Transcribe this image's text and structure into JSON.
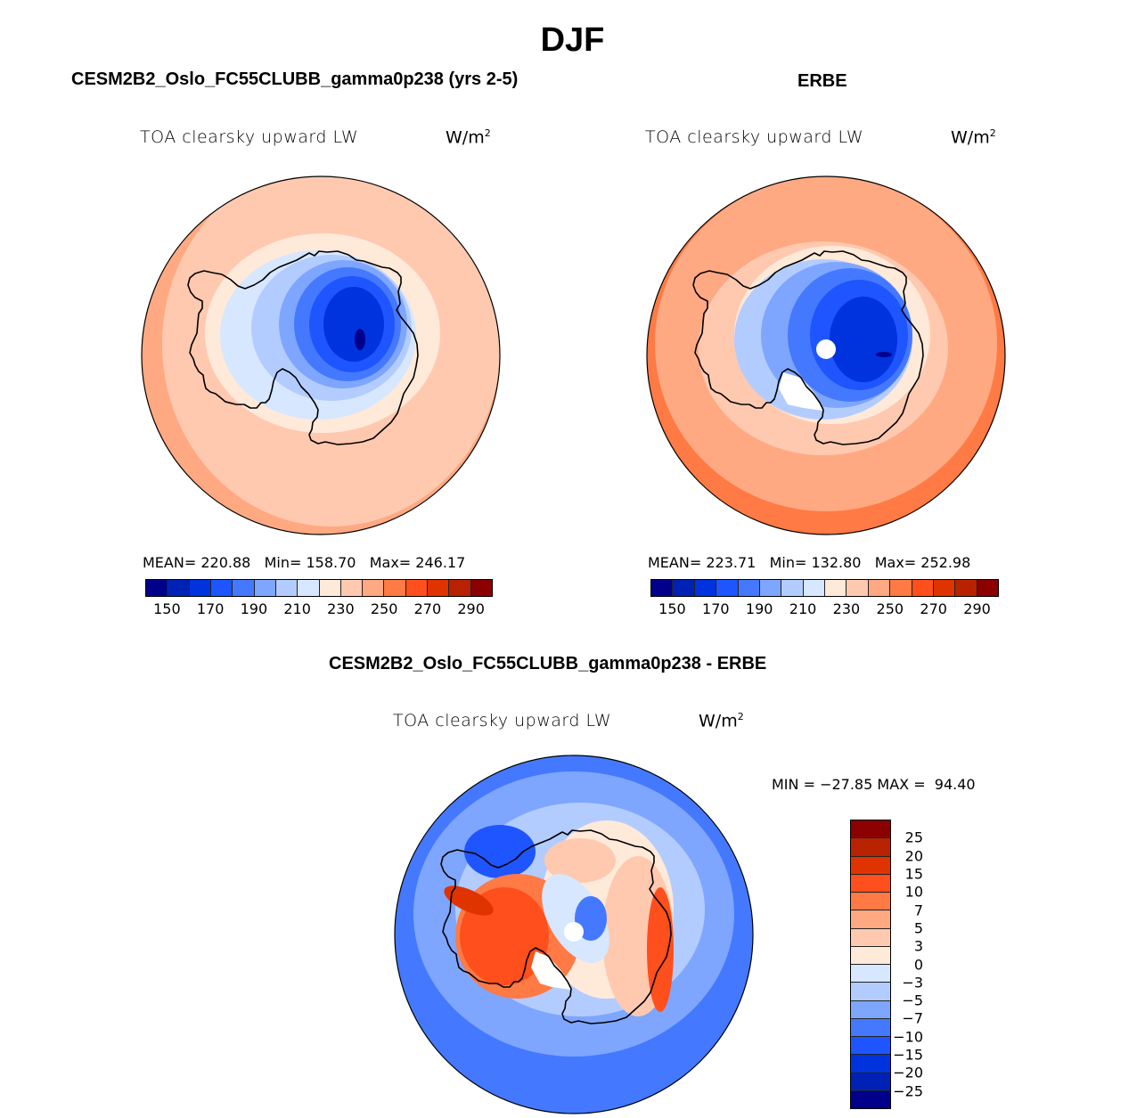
{
  "figure": {
    "title": "DJF"
  },
  "chart_data": [
    {
      "type": "heatmap",
      "projection": "south-polar-stereographic",
      "title": "CESM2B2_Oslo_FC55CLUBB_gamma0p238 (yrs 2-5)",
      "variable": "TOA clearsky upward LW",
      "units": "W/m",
      "units_exp": "2",
      "stats": {
        "mean_label": "MEAN=",
        "mean": "220.88",
        "min_label": "Min=",
        "min": "158.70",
        "max_label": "Max=",
        "max": "246.17"
      },
      "colorbar": {
        "levels": [
          150,
          160,
          170,
          180,
          190,
          200,
          210,
          220,
          230,
          240,
          250,
          260,
          270,
          280,
          290
        ],
        "tick_labels": [
          "150",
          "170",
          "190",
          "210",
          "230",
          "250",
          "270",
          "290"
        ],
        "colors": [
          "#00008b",
          "#0022b4",
          "#0033dd",
          "#1e55ff",
          "#4479ff",
          "#7ea6ff",
          "#b3ccff",
          "#d6e7ff",
          "#ffe9d9",
          "#ffc9b0",
          "#ffa983",
          "#ff7a44",
          "#ff4f1c",
          "#e03400",
          "#b82200",
          "#8b0000"
        ]
      },
      "description": "Antarctic interior low (~150-200), coastal ~220-230, Southern Ocean ~240-250"
    },
    {
      "type": "heatmap",
      "projection": "south-polar-stereographic",
      "title": "ERBE",
      "variable": "TOA clearsky upward LW",
      "units": "W/m",
      "units_exp": "2",
      "stats": {
        "mean_label": "MEAN=",
        "mean": "223.71",
        "min_label": "Min=",
        "min": "132.80",
        "max_label": "Max=",
        "max": "252.98"
      },
      "colorbar": {
        "levels": [
          150,
          160,
          170,
          180,
          190,
          200,
          210,
          220,
          230,
          240,
          250,
          260,
          270,
          280,
          290
        ],
        "tick_labels": [
          "150",
          "170",
          "190",
          "210",
          "230",
          "250",
          "270",
          "290"
        ],
        "colors": [
          "#00008b",
          "#0022b4",
          "#0033dd",
          "#1e55ff",
          "#4479ff",
          "#7ea6ff",
          "#b3ccff",
          "#d6e7ff",
          "#ffe9d9",
          "#ffc9b0",
          "#ffa983",
          "#ff7a44",
          "#ff4f1c",
          "#e03400",
          "#b82200",
          "#8b0000"
        ]
      },
      "description": "Observed: interior ~160-200, ocean 240-260, missing data near pole and Ross Ice Shelf"
    },
    {
      "type": "heatmap",
      "projection": "south-polar-stereographic",
      "title": "CESM2B2_Oslo_FC55CLUBB_gamma0p238 - ERBE",
      "variable": "TOA clearsky upward LW",
      "units": "W/m",
      "units_exp": "2",
      "stats": {
        "min_label": "MIN =",
        "min": "−27.85",
        "max_label": "MAX =",
        "max": "94.40"
      },
      "colorbar": {
        "levels": [
          -25,
          -20,
          -15,
          -10,
          -7,
          -5,
          -3,
          0,
          3,
          5,
          7,
          10,
          15,
          20,
          25
        ],
        "tick_labels": [
          "25",
          "20",
          "15",
          "10",
          "7",
          "5",
          "3",
          "0",
          "−3",
          "−5",
          "−7",
          "−10",
          "−15",
          "−20",
          "−25"
        ],
        "colors_top_to_bottom": [
          "#8b0000",
          "#b82200",
          "#e03400",
          "#ff4f1c",
          "#ff7a44",
          "#ffa983",
          "#ffc9b0",
          "#ffe9d9",
          "#d6e7ff",
          "#b3ccff",
          "#7ea6ff",
          "#4479ff",
          "#1e55ff",
          "#0033dd",
          "#0022b4",
          "#00008b"
        ]
      },
      "description": "Ocean biased low (-3 to -15); West Antarctica / peninsula biased high (+10 to +20); East Antarctic coast +3 to +15"
    }
  ]
}
